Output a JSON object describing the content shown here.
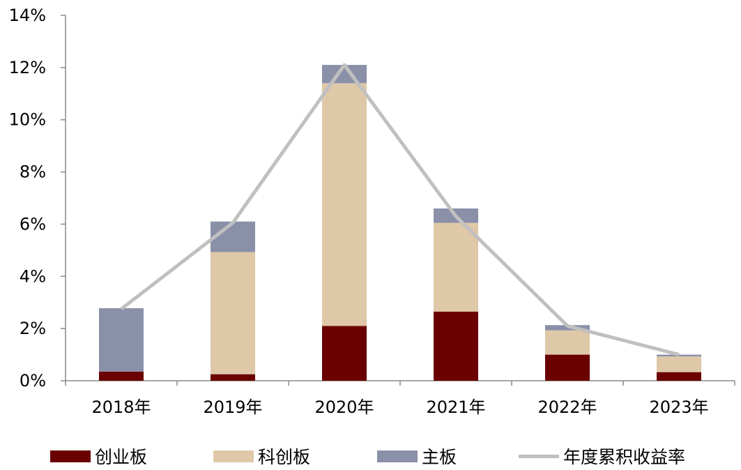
{
  "chart_data": {
    "type": "bar",
    "stacked": true,
    "categories": [
      "2018年",
      "2019年",
      "2020年",
      "2021年",
      "2022年",
      "2023年"
    ],
    "series": [
      {
        "name": "创业板",
        "kind": "bar",
        "color": "#6b0000",
        "values": [
          0.35,
          0.25,
          2.1,
          2.65,
          1.0,
          0.33
        ]
      },
      {
        "name": "科创板",
        "kind": "bar",
        "color": "#dfc8a8",
        "values": [
          0.0,
          4.68,
          9.3,
          3.4,
          0.93,
          0.6
        ]
      },
      {
        "name": "主板",
        "kind": "bar",
        "color": "#8a90a8",
        "values": [
          2.43,
          1.17,
          0.7,
          0.55,
          0.2,
          0.07
        ]
      },
      {
        "name": "年度累积收益率",
        "kind": "line",
        "color": "#c0c0c0",
        "values": [
          2.75,
          6.05,
          12.1,
          6.3,
          2.1,
          1.0
        ]
      }
    ],
    "ylim": [
      0,
      14
    ],
    "yticks": [
      0,
      2,
      4,
      6,
      8,
      10,
      12,
      14
    ],
    "ytick_labels": [
      "0%",
      "2%",
      "4%",
      "6%",
      "8%",
      "10%",
      "12%",
      "14%"
    ],
    "y_unit": "%",
    "grid": false,
    "legend_position": "bottom"
  }
}
